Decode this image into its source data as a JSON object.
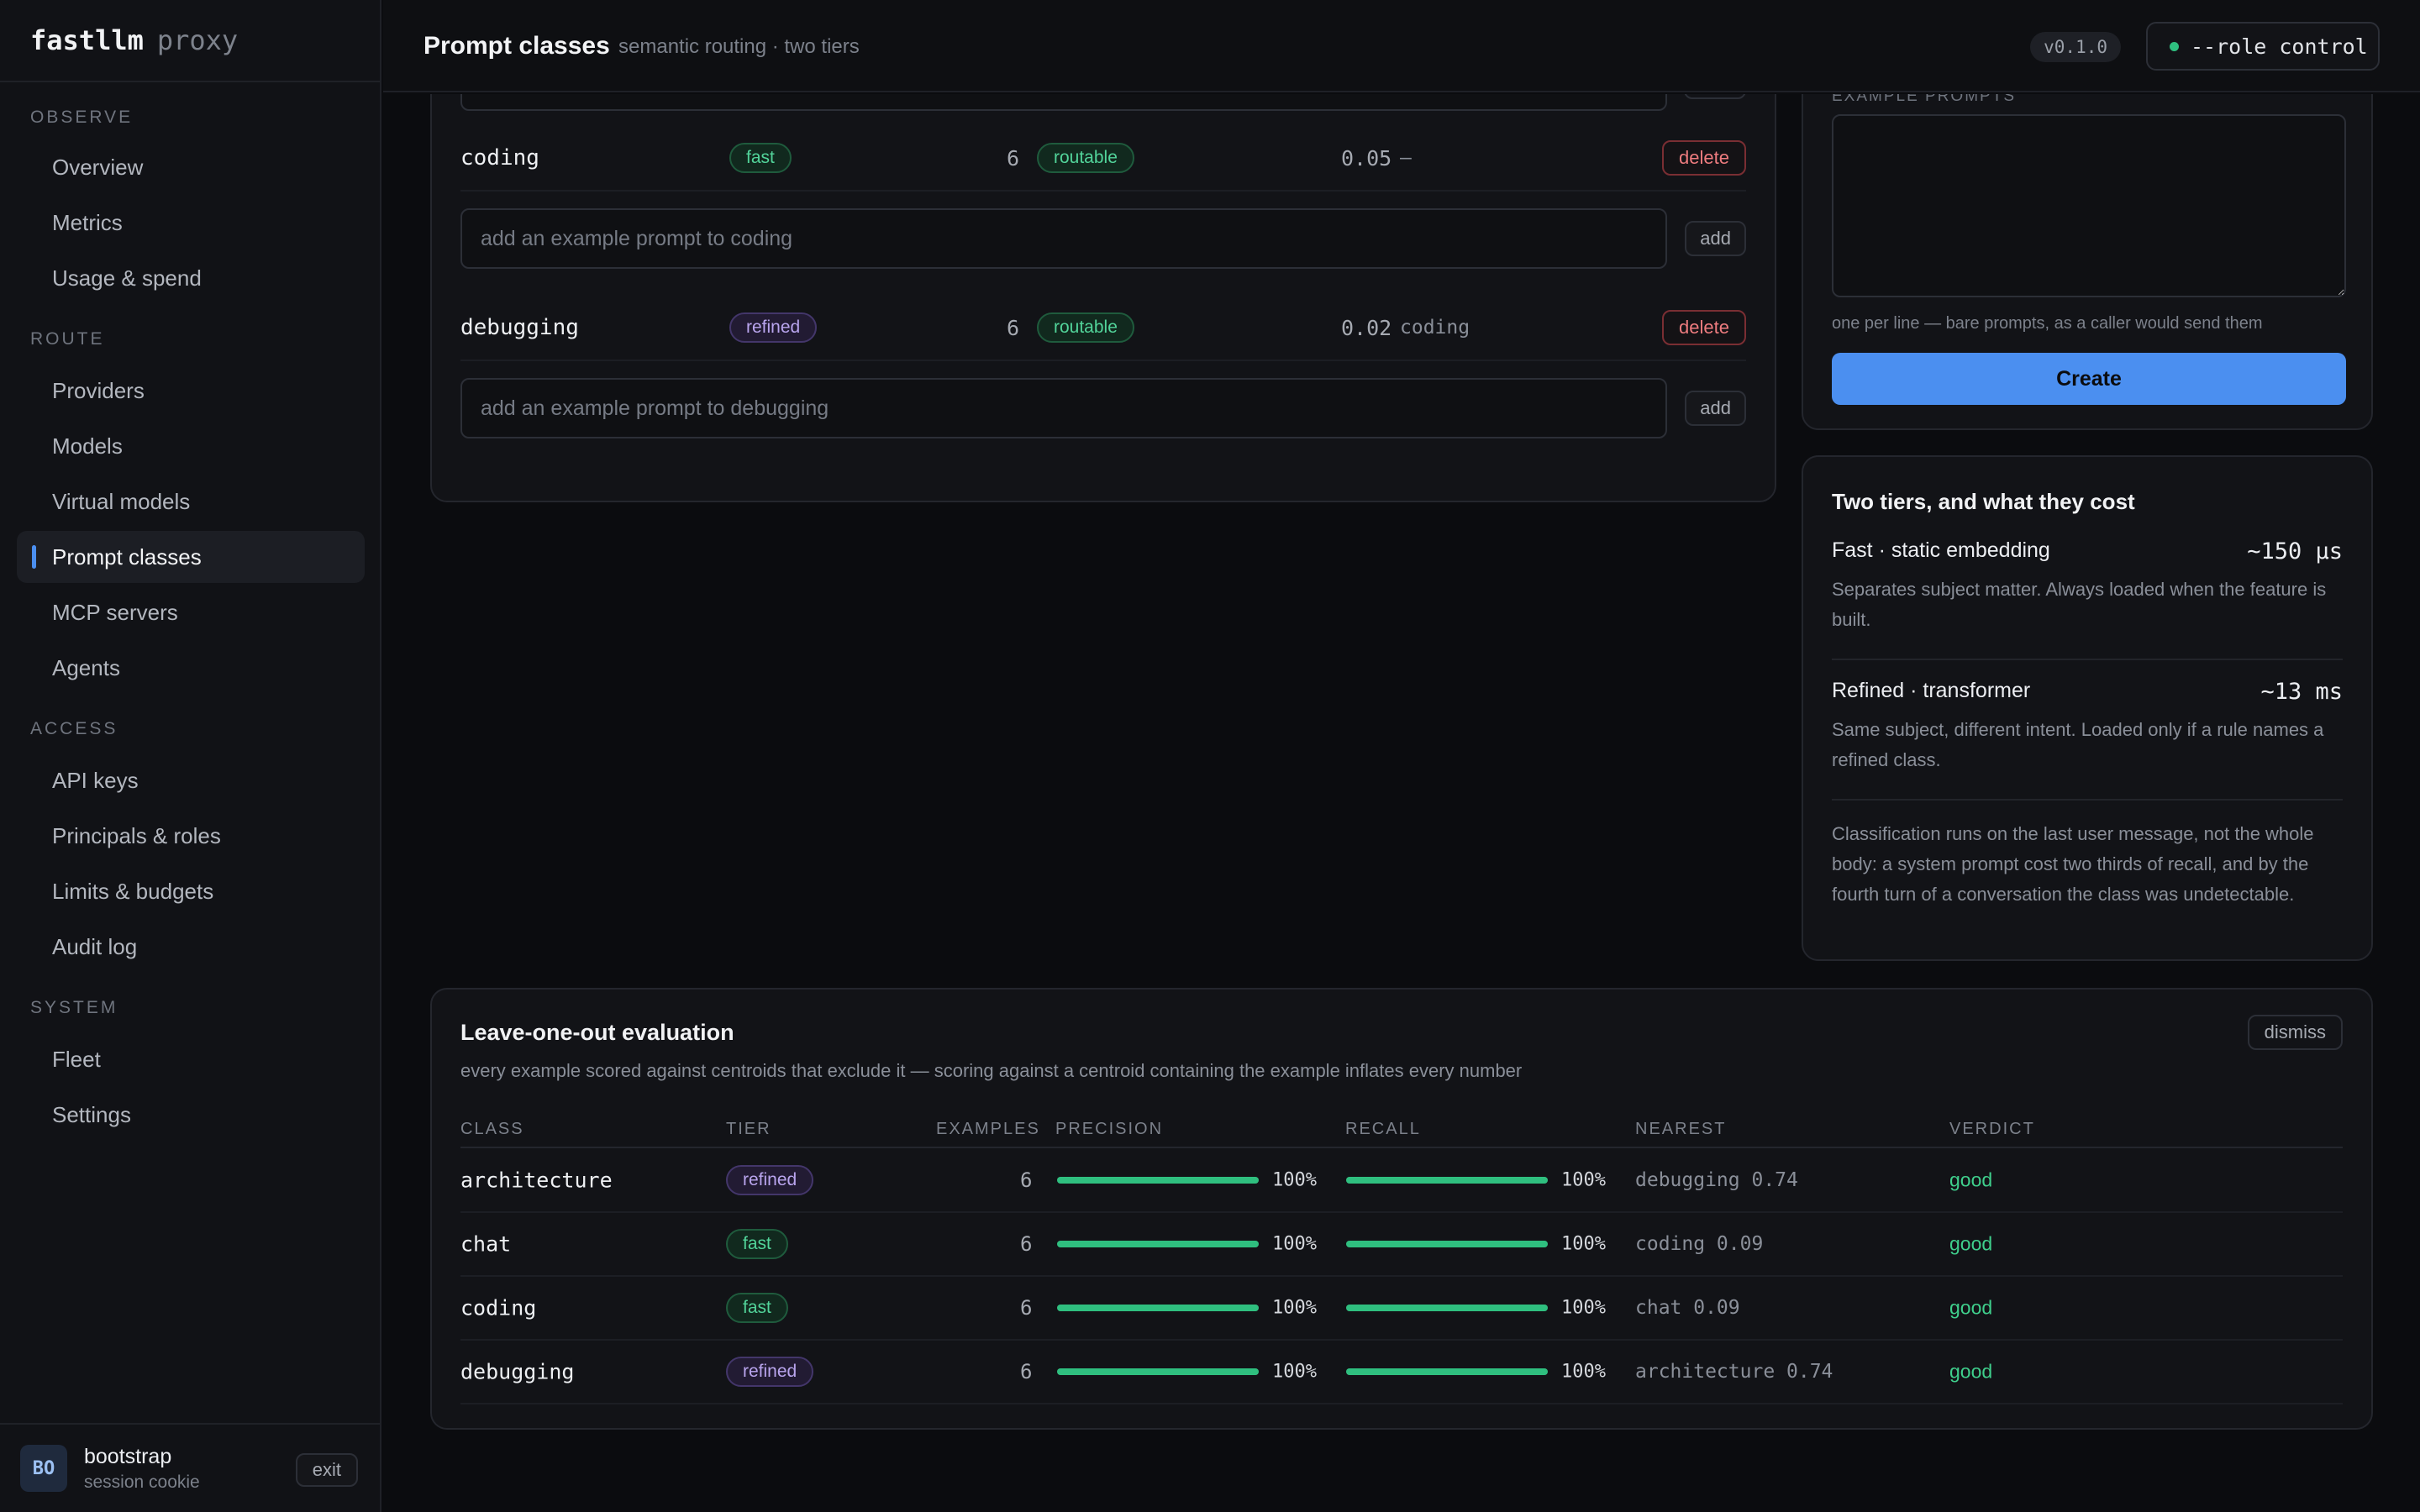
{
  "brand": {
    "name": "fastllm",
    "suffix": "proxy"
  },
  "nav": {
    "sections": [
      {
        "title": "OBSERVE",
        "items": [
          "Overview",
          "Metrics",
          "Usage & spend"
        ]
      },
      {
        "title": "ROUTE",
        "items": [
          "Providers",
          "Models",
          "Virtual models",
          "Prompt classes",
          "MCP servers",
          "Agents"
        ]
      },
      {
        "title": "ACCESS",
        "items": [
          "API keys",
          "Principals & roles",
          "Limits & budgets",
          "Audit log"
        ]
      },
      {
        "title": "SYSTEM",
        "items": [
          "Fleet",
          "Settings"
        ]
      }
    ],
    "active": "Prompt classes"
  },
  "user": {
    "initials": "BO",
    "name": "bootstrap",
    "sub": "session cookie",
    "exit_label": "exit"
  },
  "header": {
    "title": "Prompt classes",
    "subtitle": "semantic routing · two tiers",
    "version": "v0.1.0",
    "role_label": "--role control"
  },
  "classes": {
    "rows": [
      {
        "name": "coding",
        "tier": "fast",
        "examples": "6",
        "status": "routable",
        "score": "0.05",
        "nearest": "–",
        "delete_label": "delete",
        "placeholder": "add an example prompt to coding",
        "add_label": "add"
      },
      {
        "name": "debugging",
        "tier": "refined",
        "examples": "6",
        "status": "routable",
        "score": "0.02",
        "nearest": "coding",
        "delete_label": "delete",
        "placeholder": "add an example prompt to debugging",
        "add_label": "add"
      }
    ]
  },
  "create_form": {
    "examples_label": "EXAMPLE PROMPTS",
    "hint": "one per line — bare prompts, as a caller would send them",
    "create_label": "Create"
  },
  "tiers": {
    "title": "Two tiers, and what they cost",
    "items": [
      {
        "name": "Fast · static embedding",
        "cost": "~150 µs",
        "desc": "Separates subject matter. Always loaded when the feature is built."
      },
      {
        "name": "Refined · transformer",
        "cost": "~13 ms",
        "desc": "Same subject, different intent. Loaded only if a rule names a refined class."
      }
    ],
    "note": "Classification runs on the last user message, not the whole body: a system prompt cost two thirds of recall, and by the fourth turn of a conversation the class was undetectable."
  },
  "evaluation": {
    "title": "Leave-one-out evaluation",
    "subtitle": "every example scored against centroids that exclude it — scoring against a centroid containing the example inflates every number",
    "dismiss_label": "dismiss",
    "columns": [
      "CLASS",
      "TIER",
      "EXAMPLES",
      "PRECISION",
      "RECALL",
      "NEAREST",
      "VERDICT"
    ],
    "rows": [
      {
        "class": "architecture",
        "tier": "refined",
        "examples": "6",
        "precision": 100,
        "precision_label": "100%",
        "recall": 100,
        "recall_label": "100%",
        "nearest": "debugging 0.74",
        "verdict": "good"
      },
      {
        "class": "chat",
        "tier": "fast",
        "examples": "6",
        "precision": 100,
        "precision_label": "100%",
        "recall": 100,
        "recall_label": "100%",
        "nearest": "coding 0.09",
        "verdict": "good"
      },
      {
        "class": "coding",
        "tier": "fast",
        "examples": "6",
        "precision": 100,
        "precision_label": "100%",
        "recall": 100,
        "recall_label": "100%",
        "nearest": "chat 0.09",
        "verdict": "good"
      },
      {
        "class": "debugging",
        "tier": "refined",
        "examples": "6",
        "precision": 100,
        "precision_label": "100%",
        "recall": 100,
        "recall_label": "100%",
        "nearest": "architecture 0.74",
        "verdict": "good"
      }
    ]
  },
  "colors": {
    "accent": "#4b8ff0",
    "good": "#3fcf8c",
    "danger": "#ee7c7f",
    "bar": "#2fbf7f"
  }
}
